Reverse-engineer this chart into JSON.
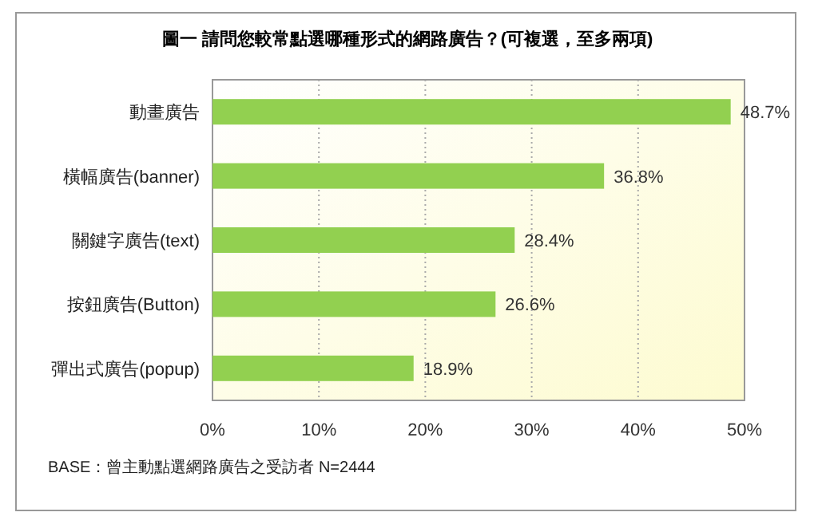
{
  "chart_data": {
    "type": "bar",
    "orientation": "horizontal",
    "title": "圖一 請問您較常點選哪種形式的網路廣告？(可複選，至多兩項)",
    "categories": [
      "動畫廣告",
      "橫幅廣告(banner)",
      "關鍵字廣告(text)",
      "按鈕廣告(Button)",
      "彈出式廣告(popup)"
    ],
    "values": [
      48.7,
      36.8,
      28.4,
      26.6,
      18.9
    ],
    "value_labels": [
      "48.7%",
      "36.8%",
      "28.4%",
      "26.6%",
      "18.9%"
    ],
    "color": "#92d050",
    "xlim": [
      0,
      50
    ],
    "xticks": [
      {
        "value": 0,
        "label": "0%"
      },
      {
        "value": 10,
        "label": "10%"
      },
      {
        "value": 20,
        "label": "20%"
      },
      {
        "value": 30,
        "label": "30%"
      },
      {
        "value": 40,
        "label": "40%"
      },
      {
        "value": 50,
        "label": "50%"
      }
    ],
    "grid": "x",
    "annotations": [
      "BASE：曾主動點選網路廣告之受訪者 N=2444"
    ]
  }
}
